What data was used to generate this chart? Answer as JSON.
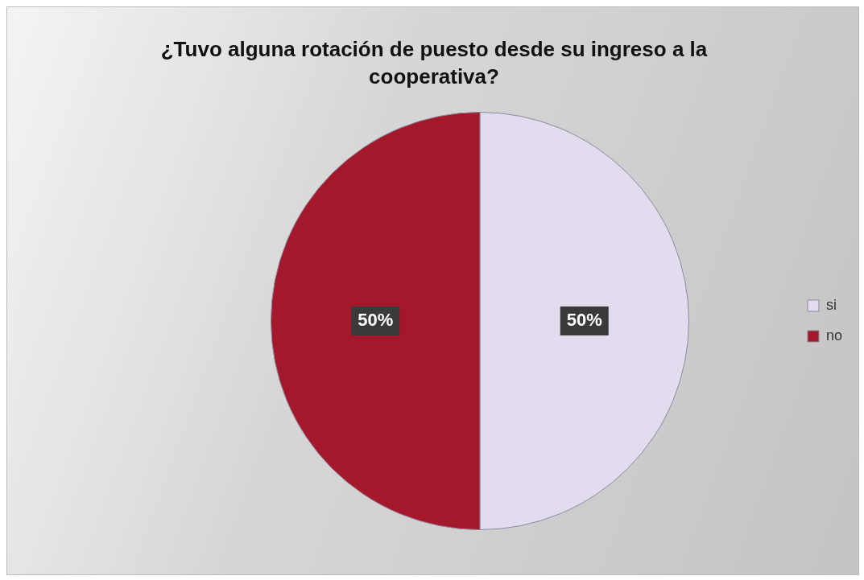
{
  "chart_data": {
    "type": "pie",
    "title": "¿Tuvo alguna rotación de puesto desde su ingreso a la cooperativa?",
    "categories": [
      "si",
      "no"
    ],
    "values": [
      50,
      50
    ],
    "colors": [
      "#e2dcee",
      "#a3182a"
    ],
    "value_labels": [
      "50%",
      "50%"
    ],
    "legend": "right"
  }
}
